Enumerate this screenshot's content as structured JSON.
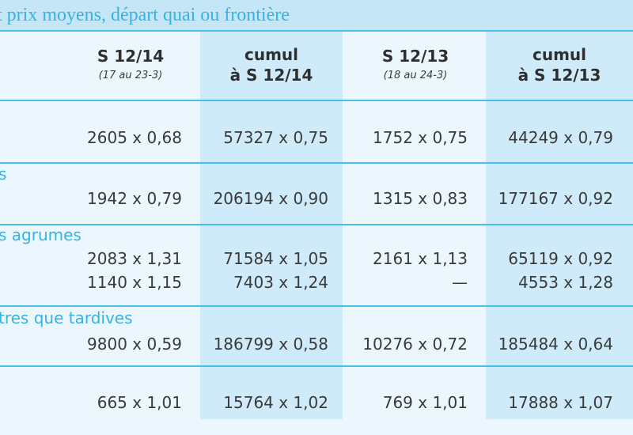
{
  "title": "t prix moyens, départ quai ou frontière",
  "headers": [
    {
      "main": "S 12/14",
      "sub": "(17 au 23-3)"
    },
    {
      "main": "cumul",
      "main2": "à S 12/14"
    },
    {
      "main": "S 12/13",
      "sub": "(18 au 24-3)"
    },
    {
      "main": "cumul",
      "main2": "à S 12/13"
    }
  ],
  "rows": [
    {
      "category": "",
      "values": [
        [
          "2605 x 0,68",
          "57327 x 0,75",
          "1752 x 0,75",
          "44249 x 0,79"
        ]
      ]
    },
    {
      "category": "s",
      "values": [
        [
          "1942 x 0,79",
          "206194 x 0,90",
          "1315 x 0,83",
          "177167 x 0,92"
        ]
      ]
    },
    {
      "category": "s agrumes",
      "values": [
        [
          "2083 x 1,31",
          "71584 x 1,05",
          "2161 x 1,13",
          "65119 x 0,92"
        ],
        [
          "1140 x 1,15",
          "7403 x 1,24",
          "—",
          "4553 x 1,28"
        ]
      ]
    },
    {
      "category": "tres que tardives",
      "values": [
        [
          "9800 x 0,59",
          "186799 x 0,58",
          "10276 x 0,72",
          "185484 x 0,64"
        ]
      ]
    },
    {
      "category": "",
      "values": [
        [
          "665 x 1,01",
          "15764 x 1,02",
          "769 x 1,01",
          "17888 x 1,07"
        ]
      ]
    }
  ]
}
